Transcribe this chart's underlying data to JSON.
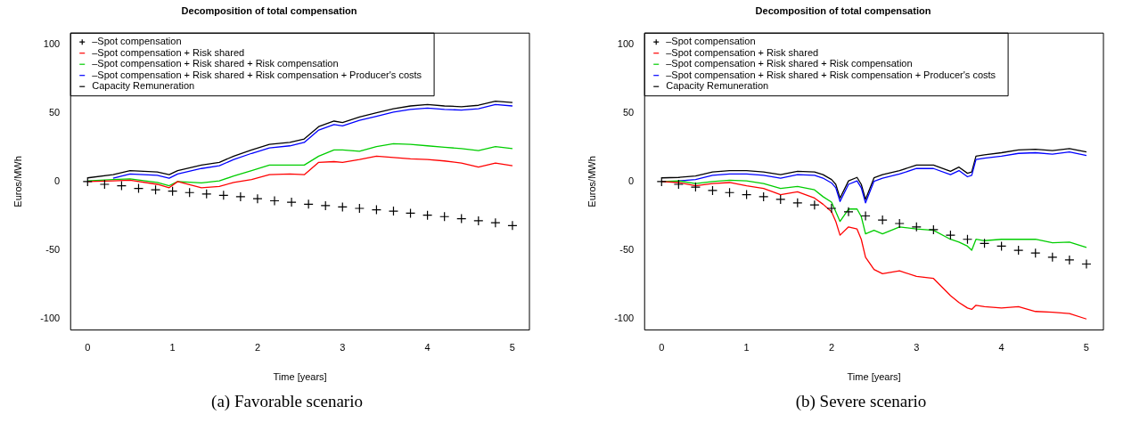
{
  "chart_data": [
    {
      "type": "line",
      "title": "Decomposition of total compensation",
      "xlabel": "Time [years]",
      "ylabel": "Euros/MWh",
      "annotations": [
        "(a) Favorable scenario"
      ],
      "xlim": [
        -0.2,
        5.2
      ],
      "ylim": [
        -108,
        108
      ],
      "xticks": [
        0,
        1,
        2,
        3,
        4,
        5
      ],
      "yticks": [
        -100,
        -50,
        0,
        50,
        100
      ],
      "grid": false,
      "legend": "top left",
      "line_style": "solid",
      "series": [
        {
          "name": "–Spot compensation",
          "type": "scatter",
          "marker": "cross",
          "color": "#000000",
          "x": [
            0,
            0.2,
            0.4,
            0.6,
            0.8,
            1,
            1.2,
            1.4,
            1.6,
            1.8,
            2,
            2.2,
            2.4,
            2.6,
            2.8,
            3,
            3.2,
            3.4,
            3.6,
            3.8,
            4,
            4.2,
            4.4,
            4.6,
            4.8,
            5
          ],
          "values": [
            0,
            -2,
            -3,
            -5,
            -6,
            -7,
            -8,
            -9,
            -10,
            -11,
            -12.5,
            -14,
            -15,
            -16.5,
            -17.5,
            -18.5,
            -19.5,
            -20.5,
            -21.5,
            -23,
            -24.5,
            -25.5,
            -27,
            -28.5,
            -30,
            -32
          ]
        },
        {
          "name": "–Spot compensation + Risk shared",
          "type": "line",
          "marker": "none",
          "color": "#ff0000",
          "x": [
            0,
            0.3,
            0.5,
            0.82,
            0.96,
            1.06,
            1.34,
            1.55,
            1.72,
            1.93,
            2.14,
            2.38,
            2.55,
            2.72,
            2.9,
            3,
            3.2,
            3.4,
            3.6,
            3.8,
            4,
            4.2,
            4.4,
            4.6,
            4.8,
            5
          ],
          "values": [
            0,
            0.5,
            1,
            -2,
            -4.5,
            0,
            -4.5,
            -3.5,
            -0.7,
            1.5,
            5,
            5.5,
            5,
            14,
            14.5,
            14,
            16,
            18.5,
            17.5,
            16.5,
            16,
            15,
            13.5,
            10.5,
            13.5,
            11.5
          ]
        },
        {
          "name": "–Spot compensation + Risk shared + Risk compensation",
          "type": "line",
          "marker": "none",
          "color": "#00cd00",
          "x": [
            0,
            0.3,
            0.5,
            0.82,
            0.96,
            1.06,
            1.34,
            1.55,
            1.72,
            1.93,
            2.14,
            2.38,
            2.55,
            2.72,
            2.9,
            3,
            3.2,
            3.4,
            3.6,
            3.8,
            4,
            4.2,
            4.4,
            4.6,
            4.8,
            5
          ],
          "values": [
            0.5,
            1.5,
            2,
            -0.7,
            -3,
            0,
            -1,
            0.5,
            4,
            8,
            12,
            12,
            12,
            18.5,
            23,
            23,
            22,
            25.5,
            27.5,
            27,
            26,
            25,
            24,
            22.5,
            25.5,
            24
          ]
        },
        {
          "name": "–Spot compensation + Risk shared + Risk compensation + Producer's costs",
          "type": "line",
          "marker": "none",
          "color": "#0000ff",
          "x": [
            0.3,
            0.5,
            0.82,
            0.96,
            1.06,
            1.34,
            1.55,
            1.72,
            1.93,
            2.14,
            2.38,
            2.55,
            2.72,
            2.9,
            3,
            3.2,
            3.4,
            3.6,
            3.8,
            4,
            4.2,
            4.4,
            4.6,
            4.8,
            5
          ],
          "values": [
            2.5,
            5.5,
            4.5,
            2.5,
            5.5,
            9.5,
            11.5,
            16,
            20.5,
            24.5,
            26,
            28.5,
            37.5,
            41.5,
            40.5,
            44.5,
            47.5,
            50.5,
            52.5,
            53.5,
            52.5,
            52,
            53,
            56,
            55
          ]
        },
        {
          "name": "Capacity Remuneration",
          "type": "line",
          "marker": "none",
          "color": "#000000",
          "x": [
            0,
            0.3,
            0.5,
            0.82,
            0.96,
            1.06,
            1.34,
            1.55,
            1.72,
            1.93,
            2.14,
            2.38,
            2.55,
            2.72,
            2.9,
            3,
            3.2,
            3.4,
            3.6,
            3.8,
            4,
            4.2,
            4.4,
            4.6,
            4.8,
            5
          ],
          "values": [
            2.7,
            5,
            8,
            7,
            5,
            8,
            12,
            14,
            18.5,
            23,
            27,
            28.5,
            31,
            40,
            44,
            43,
            47,
            50,
            53,
            55,
            56,
            55,
            54.5,
            55.5,
            58.5,
            57.5
          ]
        }
      ]
    },
    {
      "type": "line",
      "title": "Decomposition of total compensation",
      "xlabel": "Time [years]",
      "ylabel": "Euros/MWh",
      "annotations": [
        "(b) Severe scenario"
      ],
      "xlim": [
        -0.2,
        5.2
      ],
      "ylim": [
        -108,
        108
      ],
      "xticks": [
        0,
        1,
        2,
        3,
        4,
        5
      ],
      "yticks": [
        -100,
        -50,
        0,
        50,
        100
      ],
      "grid": false,
      "legend": "top left",
      "line_style": "solid",
      "series": [
        {
          "name": "–Spot compensation",
          "type": "scatter",
          "marker": "cross",
          "color": "#000000",
          "x": [
            0,
            0.2,
            0.4,
            0.6,
            0.8,
            1,
            1.2,
            1.4,
            1.6,
            1.8,
            2,
            2.2,
            2.4,
            2.6,
            2.8,
            3,
            3.2,
            3.4,
            3.6,
            3.8,
            4,
            4.2,
            4.4,
            4.6,
            4.8,
            5
          ],
          "values": [
            0,
            -2,
            -4,
            -6.5,
            -8,
            -9.5,
            -11,
            -13,
            -15.5,
            -17,
            -19.5,
            -22,
            -25,
            -28,
            -30.5,
            -33,
            -35,
            -39,
            -42,
            -45,
            -47,
            -50,
            -52,
            -55,
            -57,
            -60
          ]
        },
        {
          "name": "–Spot compensation + Risk shared",
          "type": "line",
          "marker": "none",
          "color": "#ff0000",
          "x": [
            0,
            0.2,
            0.4,
            0.6,
            0.8,
            1,
            1.2,
            1.4,
            1.6,
            1.8,
            1.9,
            2,
            2.05,
            2.1,
            2.2,
            2.3,
            2.35,
            2.4,
            2.5,
            2.6,
            2.8,
            3,
            3.2,
            3.4,
            3.5,
            3.6,
            3.65,
            3.7,
            3.8,
            4,
            4.2,
            4.4,
            4.6,
            4.8,
            5
          ],
          "values": [
            0,
            -0.7,
            -3,
            -1.5,
            -0.7,
            -3,
            -5,
            -9.5,
            -7.5,
            -12,
            -16.5,
            -22,
            -29,
            -39,
            -33,
            -34.5,
            -42,
            -55,
            -64,
            -67,
            -65,
            -69,
            -70.5,
            -83,
            -88,
            -92,
            -93,
            -90,
            -91,
            -92,
            -91,
            -94.5,
            -95,
            -96,
            -100
          ]
        },
        {
          "name": "–Spot compensation + Risk shared + Risk compensation",
          "type": "line",
          "marker": "none",
          "color": "#00cd00",
          "x": [
            0,
            0.2,
            0.4,
            0.6,
            0.8,
            1,
            1.2,
            1.4,
            1.6,
            1.8,
            1.9,
            2,
            2.05,
            2.1,
            2.2,
            2.3,
            2.35,
            2.4,
            2.5,
            2.6,
            2.8,
            3,
            3.2,
            3.4,
            3.5,
            3.6,
            3.65,
            3.7,
            3.8,
            4,
            4.2,
            4.4,
            4.6,
            4.8,
            5
          ],
          "values": [
            0,
            0.5,
            -1.5,
            0,
            1,
            0.5,
            -1.5,
            -5,
            -3.5,
            -6,
            -11,
            -15,
            -22,
            -29,
            -20,
            -20,
            -25.5,
            -38,
            -35.5,
            -38,
            -33,
            -34.5,
            -35.5,
            -42,
            -44,
            -47,
            -50,
            -42,
            -43,
            -42,
            -42,
            -42,
            -44.5,
            -44,
            -48
          ]
        },
        {
          "name": "–Spot compensation + Risk shared + Risk compensation + Producer's costs",
          "type": "line",
          "marker": "none",
          "color": "#0000ff",
          "x": [
            0.2,
            0.4,
            0.6,
            0.8,
            1,
            1.2,
            1.4,
            1.6,
            1.8,
            1.9,
            2,
            2.05,
            2.1,
            2.2,
            2.3,
            2.35,
            2.4,
            2.5,
            2.6,
            2.8,
            3,
            3.2,
            3.4,
            3.5,
            3.6,
            3.65,
            3.7,
            3.8,
            4,
            4.2,
            4.4,
            4.6,
            4.8,
            5
          ],
          "values": [
            0.5,
            1.5,
            4.5,
            5.5,
            5.5,
            4.5,
            2.5,
            5,
            4.5,
            2.5,
            -1,
            -4.5,
            -14.5,
            -2,
            0.5,
            -4.5,
            -15.5,
            0.2,
            2.5,
            5.5,
            9.5,
            9.5,
            5,
            8,
            3.5,
            4.5,
            16,
            17,
            18.5,
            20.5,
            21,
            20,
            21.5,
            19
          ]
        },
        {
          "name": "Capacity Remuneration",
          "type": "line",
          "marker": "none",
          "color": "#000000",
          "x": [
            0,
            0.2,
            0.4,
            0.6,
            0.8,
            1,
            1.2,
            1.4,
            1.6,
            1.8,
            1.9,
            2,
            2.05,
            2.1,
            2.2,
            2.3,
            2.35,
            2.4,
            2.5,
            2.6,
            2.8,
            3,
            3.2,
            3.4,
            3.5,
            3.6,
            3.65,
            3.7,
            3.8,
            4,
            4.2,
            4.4,
            4.6,
            4.8,
            5
          ],
          "values": [
            2.7,
            3,
            4,
            7,
            8,
            8,
            7,
            5,
            7.5,
            7,
            5,
            1.5,
            -2,
            -12,
            0.5,
            3,
            -2,
            -13,
            2.7,
            5,
            8,
            12,
            12,
            7.5,
            10.5,
            6,
            7,
            18.5,
            19.5,
            21,
            23,
            23.5,
            22.5,
            24,
            21.5
          ]
        }
      ]
    }
  ]
}
